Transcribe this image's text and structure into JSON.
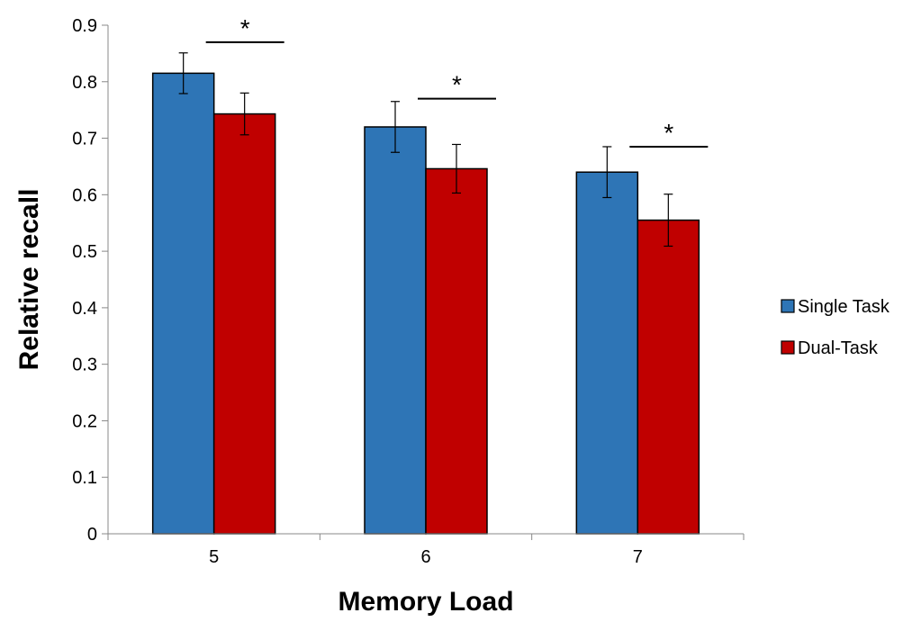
{
  "chart_data": {
    "type": "bar",
    "title": "",
    "xlabel": "Memory Load",
    "ylabel": "Relative recall",
    "categories": [
      "5",
      "6",
      "7"
    ],
    "ylim": [
      0,
      0.9
    ],
    "yticks": [
      "0",
      "0.1",
      "0.2",
      "0.3",
      "0.4",
      "0.5",
      "0.6",
      "0.7",
      "0.8",
      "0.9"
    ],
    "grid": false,
    "legend_position": "right",
    "series": [
      {
        "name": "Single Task",
        "color": "#2E75B6",
        "values": [
          0.815,
          0.72,
          0.64
        ],
        "error": [
          0.036,
          0.045,
          0.045
        ]
      },
      {
        "name": "Dual-Task",
        "color": "#C00000",
        "values": [
          0.743,
          0.646,
          0.555
        ],
        "error": [
          0.037,
          0.043,
          0.046
        ]
      }
    ],
    "annotations": [
      {
        "text": "*",
        "category": "5",
        "y": 0.87
      },
      {
        "text": "*",
        "category": "6",
        "y": 0.77
      },
      {
        "text": "*",
        "category": "7",
        "y": 0.685
      }
    ]
  }
}
